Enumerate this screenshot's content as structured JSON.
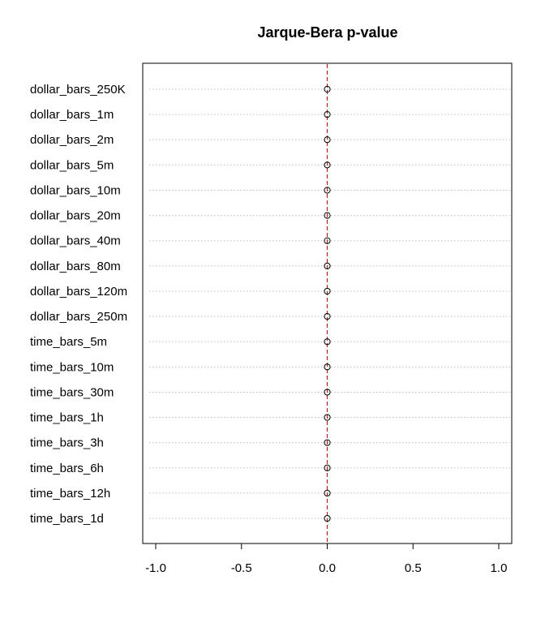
{
  "chart_data": {
    "type": "dotchart",
    "title": "Jarque-Bera p-value",
    "xlabel": "",
    "ylabel": "",
    "xlim": [
      -1.0,
      1.0
    ],
    "xticks": [
      -1.0,
      -0.5,
      0.0,
      0.5,
      1.0
    ],
    "xtick_labels": [
      "-1.0",
      "-0.5",
      "0.0",
      "0.5",
      "1.0"
    ],
    "reference_line": {
      "x": 0.0,
      "color": "#b22222",
      "style": "dashed"
    },
    "grid": "horizontal dotted",
    "categories": [
      "dollar_bars_250K",
      "dollar_bars_1m",
      "dollar_bars_2m",
      "dollar_bars_5m",
      "dollar_bars_10m",
      "dollar_bars_20m",
      "dollar_bars_40m",
      "dollar_bars_80m",
      "dollar_bars_120m",
      "dollar_bars_250m",
      "time_bars_5m",
      "time_bars_10m",
      "time_bars_30m",
      "time_bars_1h",
      "time_bars_3h",
      "time_bars_6h",
      "time_bars_12h",
      "time_bars_1d"
    ],
    "values": [
      0,
      0,
      0,
      0,
      0,
      0,
      0,
      0,
      0,
      0,
      0,
      0,
      0,
      0,
      0,
      0,
      0,
      0
    ],
    "marker": "open-circle"
  }
}
